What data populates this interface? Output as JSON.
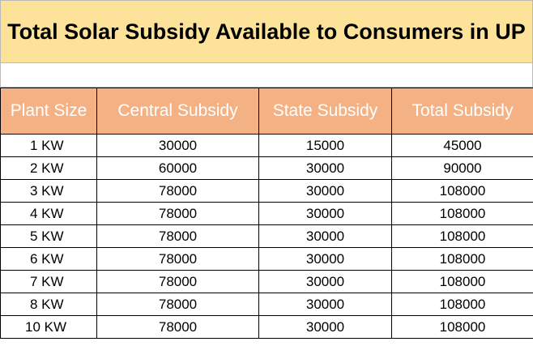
{
  "title": "Total Solar Subsidy Available to Consumers in UP",
  "colors": {
    "title_bg": "#fde39a",
    "header_bg": "#f4b183",
    "header_text": "#ffffff"
  },
  "table": {
    "headers": [
      "Plant Size",
      "Central Subsidy",
      "State Subsidy",
      "Total Subsidy"
    ],
    "rows": [
      [
        "1 KW",
        "30000",
        "15000",
        "45000"
      ],
      [
        "2 KW",
        "60000",
        "30000",
        "90000"
      ],
      [
        "3 KW",
        "78000",
        "30000",
        "108000"
      ],
      [
        "4 KW",
        "78000",
        "30000",
        "108000"
      ],
      [
        "5 KW",
        "78000",
        "30000",
        "108000"
      ],
      [
        "6 KW",
        "78000",
        "30000",
        "108000"
      ],
      [
        "7 KW",
        "78000",
        "30000",
        "108000"
      ],
      [
        "8 KW",
        "78000",
        "30000",
        "108000"
      ],
      [
        "10 KW",
        "78000",
        "30000",
        "108000"
      ]
    ]
  }
}
